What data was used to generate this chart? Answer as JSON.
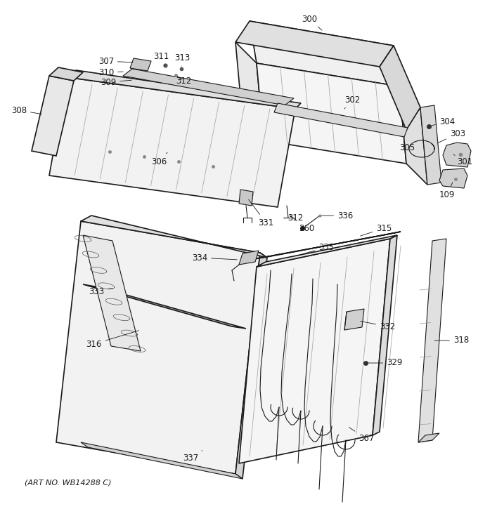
{
  "art_no": "(ART NO. WB14288 C)",
  "background_color": "#ffffff",
  "figsize": [
    6.8,
    7.25
  ],
  "dpi": 100,
  "line_color": "#1a1a1a",
  "label_fontsize": 8.5,
  "art_fontsize": 8
}
